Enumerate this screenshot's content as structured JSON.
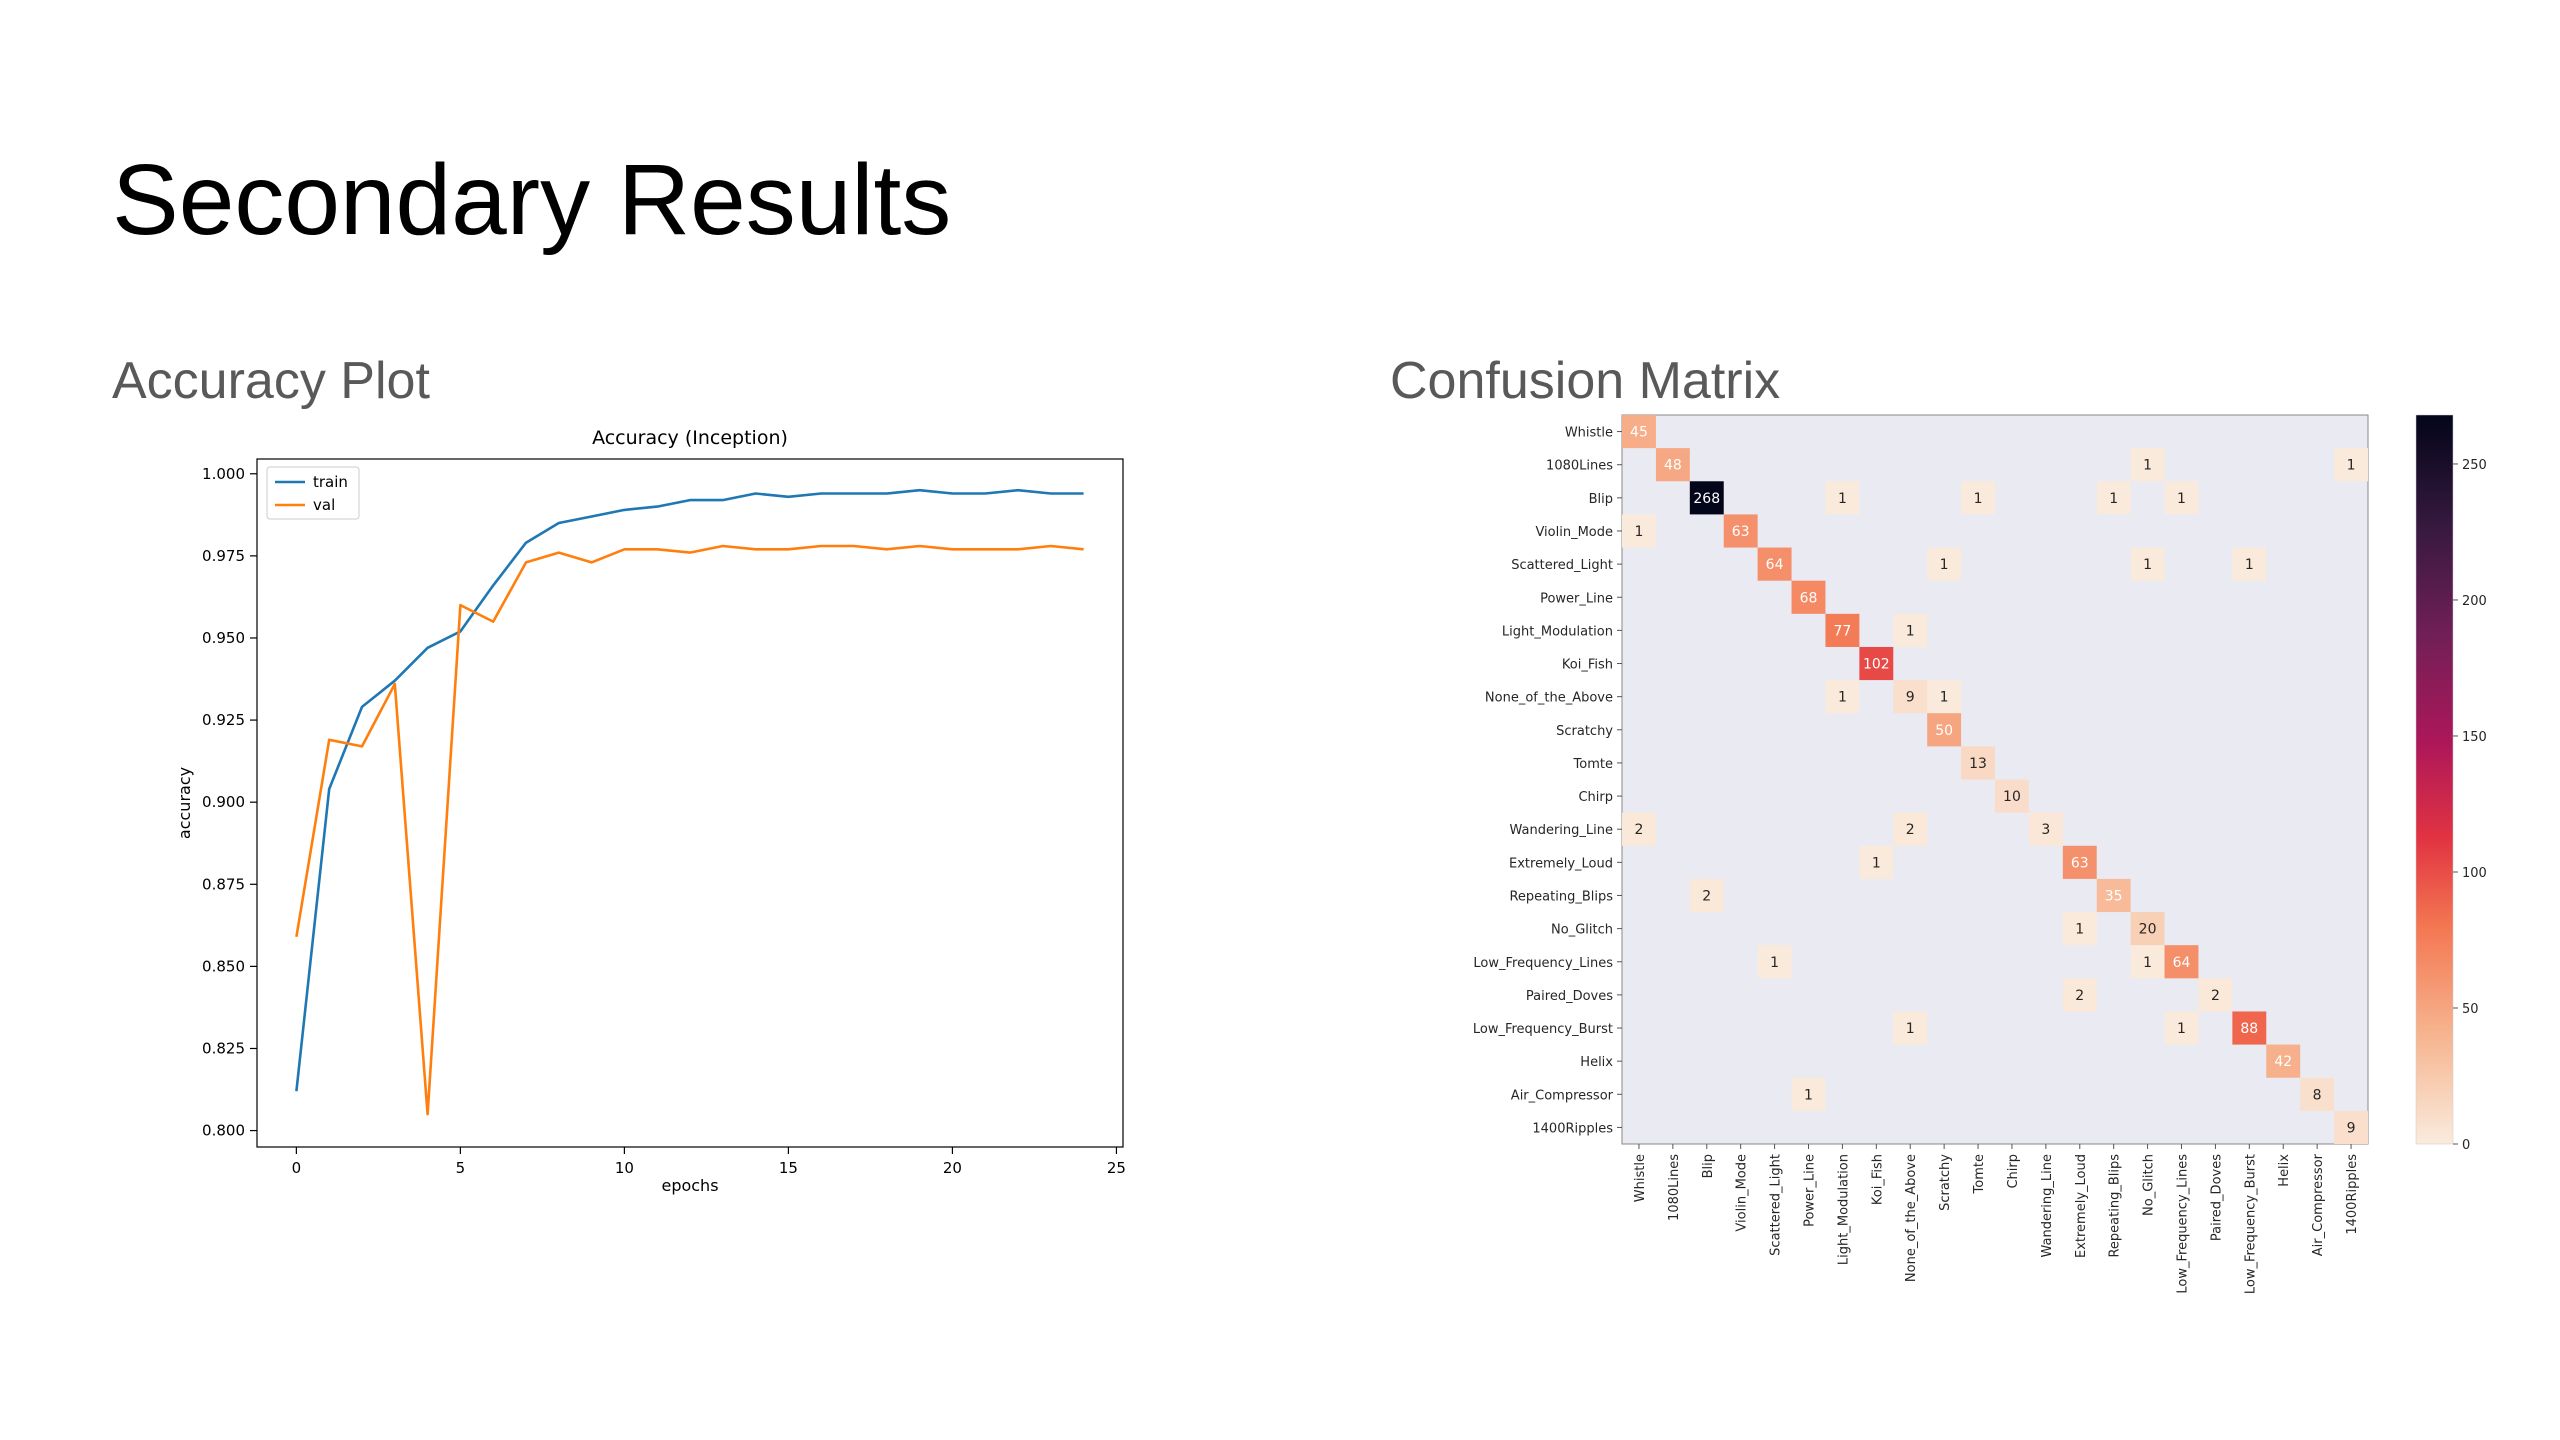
{
  "slide": {
    "title": "Secondary Results",
    "left_heading": "Accuracy Plot",
    "right_heading": "Confusion Matrix"
  },
  "chart_data": [
    {
      "type": "line",
      "title": "Accuracy (Inception)",
      "xlabel": "epochs",
      "ylabel": "accuracy",
      "xlim": [
        -1.2,
        25.2
      ],
      "ylim": [
        0.795,
        1.0045
      ],
      "x_ticks": [
        0,
        5,
        10,
        15,
        20,
        25
      ],
      "y_ticks": [
        0.8,
        0.825,
        0.85,
        0.875,
        0.9,
        0.925,
        0.95,
        0.975,
        1.0
      ],
      "x_tick_labels": [
        "0",
        "5",
        "10",
        "15",
        "20",
        "25"
      ],
      "y_tick_labels": [
        "0.800",
        "0.825",
        "0.850",
        "0.875",
        "0.900",
        "0.925",
        "0.950",
        "0.975",
        "1.000"
      ],
      "legend_position": "top-left",
      "grid": false,
      "x": [
        0,
        1,
        2,
        3,
        4,
        5,
        6,
        7,
        8,
        9,
        10,
        11,
        12,
        13,
        14,
        15,
        16,
        17,
        18,
        19,
        20,
        21,
        22,
        23,
        24
      ],
      "series": [
        {
          "name": "train",
          "color": "#1f77b4",
          "values": [
            0.812,
            0.904,
            0.929,
            0.937,
            0.947,
            0.952,
            0.966,
            0.979,
            0.985,
            0.987,
            0.989,
            0.99,
            0.992,
            0.992,
            0.994,
            0.993,
            0.994,
            0.994,
            0.994,
            0.995,
            0.994,
            0.994,
            0.995,
            0.994,
            0.994
          ]
        },
        {
          "name": "val",
          "color": "#ff7f0e",
          "values": [
            0.859,
            0.919,
            0.917,
            0.936,
            0.805,
            0.96,
            0.955,
            0.973,
            0.976,
            0.973,
            0.977,
            0.977,
            0.976,
            0.978,
            0.977,
            0.977,
            0.978,
            0.978,
            0.977,
            0.978,
            0.977,
            0.977,
            0.977,
            0.978,
            0.977
          ]
        }
      ]
    },
    {
      "type": "heatmap",
      "categories": [
        "Whistle",
        "1080Lines",
        "Blip",
        "Violin_Mode",
        "Scattered_Light",
        "Power_Line",
        "Light_Modulation",
        "Koi_Fish",
        "None_of_the_Above",
        "Scratchy",
        "Tomte",
        "Chirp",
        "Wandering_Line",
        "Extremely_Loud",
        "Repeating_Blips",
        "No_Glitch",
        "Low_Frequency_Lines",
        "Paired_Doves",
        "Low_Frequency_Burst",
        "Helix",
        "Air_Compressor",
        "1400Ripples"
      ],
      "cells": [
        [
          0,
          0,
          45
        ],
        [
          1,
          1,
          48
        ],
        [
          1,
          15,
          1
        ],
        [
          1,
          21,
          1
        ],
        [
          2,
          2,
          268
        ],
        [
          2,
          6,
          1
        ],
        [
          2,
          10,
          1
        ],
        [
          2,
          14,
          1
        ],
        [
          2,
          16,
          1
        ],
        [
          3,
          0,
          1
        ],
        [
          3,
          3,
          63
        ],
        [
          4,
          4,
          64
        ],
        [
          4,
          9,
          1
        ],
        [
          4,
          15,
          1
        ],
        [
          4,
          18,
          1
        ],
        [
          5,
          5,
          68
        ],
        [
          6,
          6,
          77
        ],
        [
          6,
          8,
          1
        ],
        [
          7,
          7,
          102
        ],
        [
          8,
          6,
          1
        ],
        [
          8,
          8,
          9
        ],
        [
          8,
          9,
          1
        ],
        [
          9,
          9,
          50
        ],
        [
          10,
          10,
          13
        ],
        [
          11,
          11,
          10
        ],
        [
          12,
          0,
          2
        ],
        [
          12,
          8,
          2
        ],
        [
          12,
          12,
          3
        ],
        [
          13,
          7,
          1
        ],
        [
          13,
          13,
          63
        ],
        [
          14,
          2,
          2
        ],
        [
          14,
          14,
          35
        ],
        [
          15,
          13,
          1
        ],
        [
          15,
          15,
          20
        ],
        [
          16,
          4,
          1
        ],
        [
          16,
          15,
          1
        ],
        [
          16,
          16,
          64
        ],
        [
          17,
          13,
          2
        ],
        [
          17,
          17,
          2
        ],
        [
          18,
          8,
          1
        ],
        [
          18,
          16,
          1
        ],
        [
          18,
          18,
          88
        ],
        [
          19,
          19,
          42
        ],
        [
          20,
          5,
          1
        ],
        [
          20,
          20,
          8
        ],
        [
          21,
          21,
          9
        ]
      ],
      "vmin": 0,
      "vmax": 268,
      "colorbar_ticks": [
        0,
        50,
        100,
        150,
        200,
        250
      ],
      "colorbar_tick_labels": [
        "0",
        "50",
        "100",
        "150",
        "200",
        "250"
      ],
      "background_color": "#eaeaf2"
    }
  ]
}
